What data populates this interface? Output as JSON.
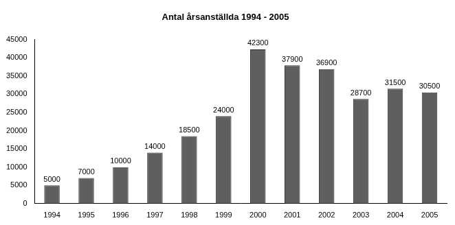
{
  "chart_data": {
    "type": "bar",
    "title": "Antal årsanställda 1994 - 2005",
    "categories": [
      "1994",
      "1995",
      "1996",
      "1997",
      "1998",
      "1999",
      "2000",
      "2001",
      "2002",
      "2003",
      "2004",
      "2005"
    ],
    "values": [
      5000,
      7000,
      10000,
      14000,
      18500,
      24000,
      42300,
      37900,
      36900,
      28700,
      31500,
      30500
    ],
    "color": "#5f5f5f",
    "ylim": [
      0,
      45000
    ],
    "yticks": [
      0,
      5000,
      10000,
      15000,
      20000,
      25000,
      30000,
      35000,
      40000,
      45000
    ],
    "grid": false,
    "data_labels": true
  }
}
